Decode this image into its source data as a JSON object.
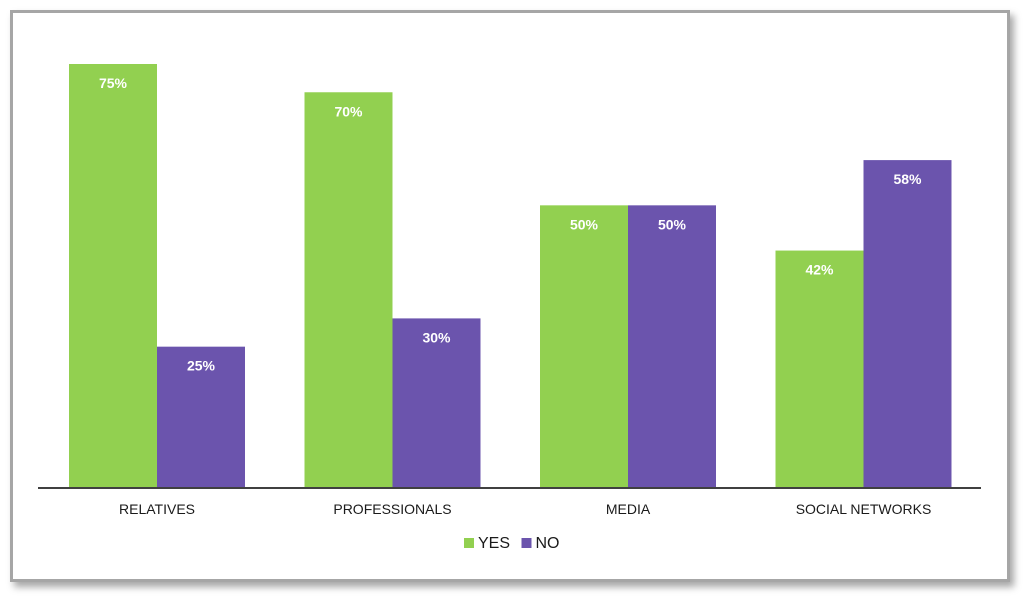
{
  "chart_data": {
    "type": "bar",
    "title": "",
    "xlabel": "",
    "ylabel": "",
    "categories": [
      "RELATIVES",
      "PROFESSIONALS",
      "MEDIA",
      "SOCIAL NETWORKS"
    ],
    "series": [
      {
        "name": "YES",
        "values": [
          75,
          70,
          50,
          42
        ],
        "labels": [
          "75%",
          "70%",
          "50%",
          "42%"
        ],
        "color": "#92d050"
      },
      {
        "name": "NO",
        "values": [
          25,
          30,
          50,
          58
        ],
        "labels": [
          "25%",
          "30%",
          "50%",
          "58%"
        ],
        "color": "#6b54ad"
      }
    ],
    "ylim": [
      0,
      80
    ],
    "grid": false,
    "legend": "bottom-center",
    "axis_color": "#404040"
  }
}
